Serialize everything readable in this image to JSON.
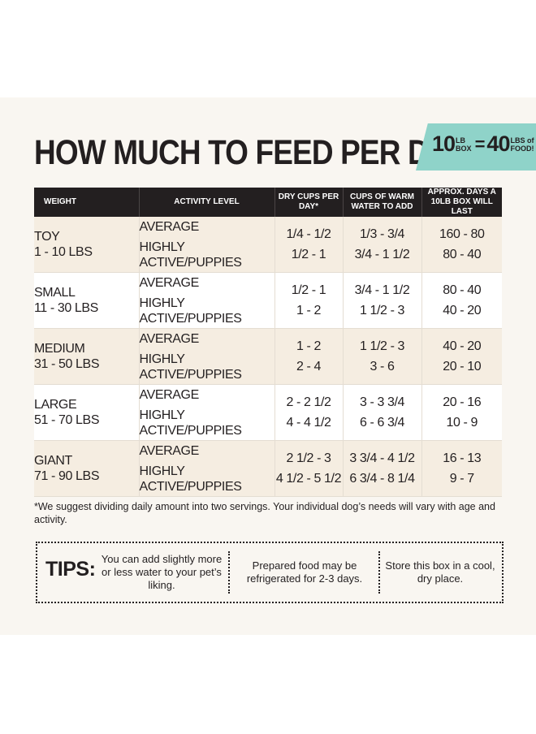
{
  "title": "HOW MUCH TO FEED PER DAY",
  "badge": {
    "box_num": "10",
    "box_unit_top": "LB",
    "box_unit_bottom": "BOX",
    "equals": "=",
    "food_num": "40",
    "food_unit_top": "LBS of",
    "food_unit_bottom": "FOOD!"
  },
  "table": {
    "headers": {
      "weight": "WEIGHT",
      "activity": "ACTIVITY LEVEL",
      "dry_cups": "DRY CUPS PER DAY*",
      "water_cups": "CUPS OF WARM WATER TO ADD",
      "days": "APPROX. DAYS A 10LB BOX WILL LAST"
    },
    "rows": [
      {
        "size": "TOY",
        "range": "1 - 10 LBS",
        "act1": "AVERAGE",
        "act2": "HIGHLY ACTIVE/PUPPIES",
        "dry1": "1/4 - 1/2",
        "dry2": "1/2 - 1",
        "water1": "1/3 - 3/4",
        "water2": "3/4 - 1 1/2",
        "days1": "160 - 80",
        "days2": "80 - 40"
      },
      {
        "size": "SMALL",
        "range": "11 - 30 LBS",
        "act1": "AVERAGE",
        "act2": "HIGHLY ACTIVE/PUPPIES",
        "dry1": "1/2 - 1",
        "dry2": "1 - 2",
        "water1": "3/4 - 1 1/2",
        "water2": "1 1/2 - 3",
        "days1": "80 - 40",
        "days2": "40 - 20"
      },
      {
        "size": "MEDIUM",
        "range": "31 - 50 LBS",
        "act1": "AVERAGE",
        "act2": "HIGHLY ACTIVE/PUPPIES",
        "dry1": "1 - 2",
        "dry2": "2 - 4",
        "water1": "1 1/2 - 3",
        "water2": "3 - 6",
        "days1": "40 - 20",
        "days2": "20 - 10"
      },
      {
        "size": "LARGE",
        "range": "51 - 70 LBS",
        "act1": "AVERAGE",
        "act2": "HIGHLY ACTIVE/PUPPIES",
        "dry1": "2 - 2 1/2",
        "dry2": "4 - 4 1/2",
        "water1": "3 - 3 3/4",
        "water2": "6 - 6 3/4",
        "days1": "20 - 16",
        "days2": "10 - 9"
      },
      {
        "size": "GIANT",
        "range": "71 - 90 LBS",
        "act1": "AVERAGE",
        "act2": "HIGHLY ACTIVE/PUPPIES",
        "dry1": "2 1/2 - 3",
        "dry2": "4 1/2 - 5 1/2",
        "water1": "3 3/4 - 4 1/2",
        "water2": "6 3/4 - 8 1/4",
        "days1": "16 - 13",
        "days2": "9 - 7"
      }
    ]
  },
  "footnote": "*We suggest dividing daily amount into two servings. Your individual dog’s needs will vary with age and activity.",
  "tips": {
    "label": "TIPS:",
    "tip1": "You can add slightly more or less water to your pet’s liking.",
    "tip2": "Prepared food may be refrigerated for 2-3 days.",
    "tip3": "Store this box in a cool, dry place."
  },
  "colors": {
    "panel_bg": "#f9f6f1",
    "header_bg": "#231f20",
    "row_shade": "#f5ede1",
    "badge_teal": "#8fd3c9",
    "text": "#231f20"
  }
}
